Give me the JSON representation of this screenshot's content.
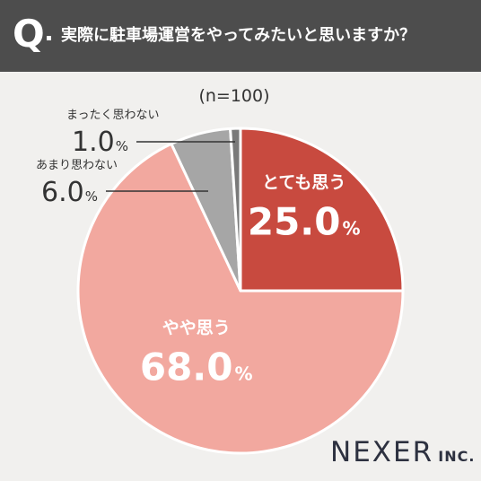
{
  "header": {
    "q_letter": "Q",
    "question": "実際に駐車場運営をやってみたいと思いますか？"
  },
  "chart_data": {
    "type": "pie",
    "title": "実際に駐車場運営をやってみたいと思いますか？",
    "subtitle": "(n=100)",
    "unit": "%",
    "slices": [
      {
        "label": "とても思う",
        "value": 25.0,
        "value_text": "25.0",
        "color": "#c84a3f"
      },
      {
        "label": "やや思う",
        "value": 68.0,
        "value_text": "68.0",
        "color": "#f2a89f"
      },
      {
        "label": "あまり思わない",
        "value": 6.0,
        "value_text": "6.0",
        "color": "#a6a6a6"
      },
      {
        "label": "まったく思わない",
        "value": 1.0,
        "value_text": "1.0",
        "color": "#7a7a7a"
      }
    ],
    "start": "12 o'clock",
    "direction": "clockwise"
  },
  "logo": {
    "main": "NEXER",
    "sub": "INC."
  }
}
